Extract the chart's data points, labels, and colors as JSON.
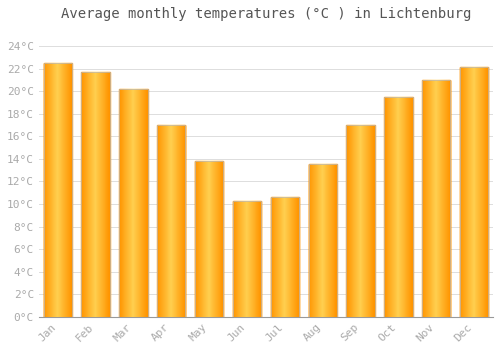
{
  "title": "Average monthly temperatures (°C ) in Lichtenburg",
  "months": [
    "Jan",
    "Feb",
    "Mar",
    "Apr",
    "May",
    "Jun",
    "Jul",
    "Aug",
    "Sep",
    "Oct",
    "Nov",
    "Dec"
  ],
  "values": [
    22.5,
    21.7,
    20.2,
    17.0,
    13.8,
    10.3,
    10.6,
    13.5,
    17.0,
    19.5,
    21.0,
    22.1
  ],
  "bar_edge_color": "#cc8800",
  "bar_center_color": "#FFB800",
  "bar_outer_color": "#FF9500",
  "background_color": "#ffffff",
  "grid_color": "#dddddd",
  "yticks": [
    0,
    2,
    4,
    6,
    8,
    10,
    12,
    14,
    16,
    18,
    20,
    22,
    24
  ],
  "ylim": [
    0,
    25.5
  ],
  "title_fontsize": 10,
  "tick_fontsize": 8,
  "tick_font_color": "#aaaaaa",
  "title_color": "#555555"
}
